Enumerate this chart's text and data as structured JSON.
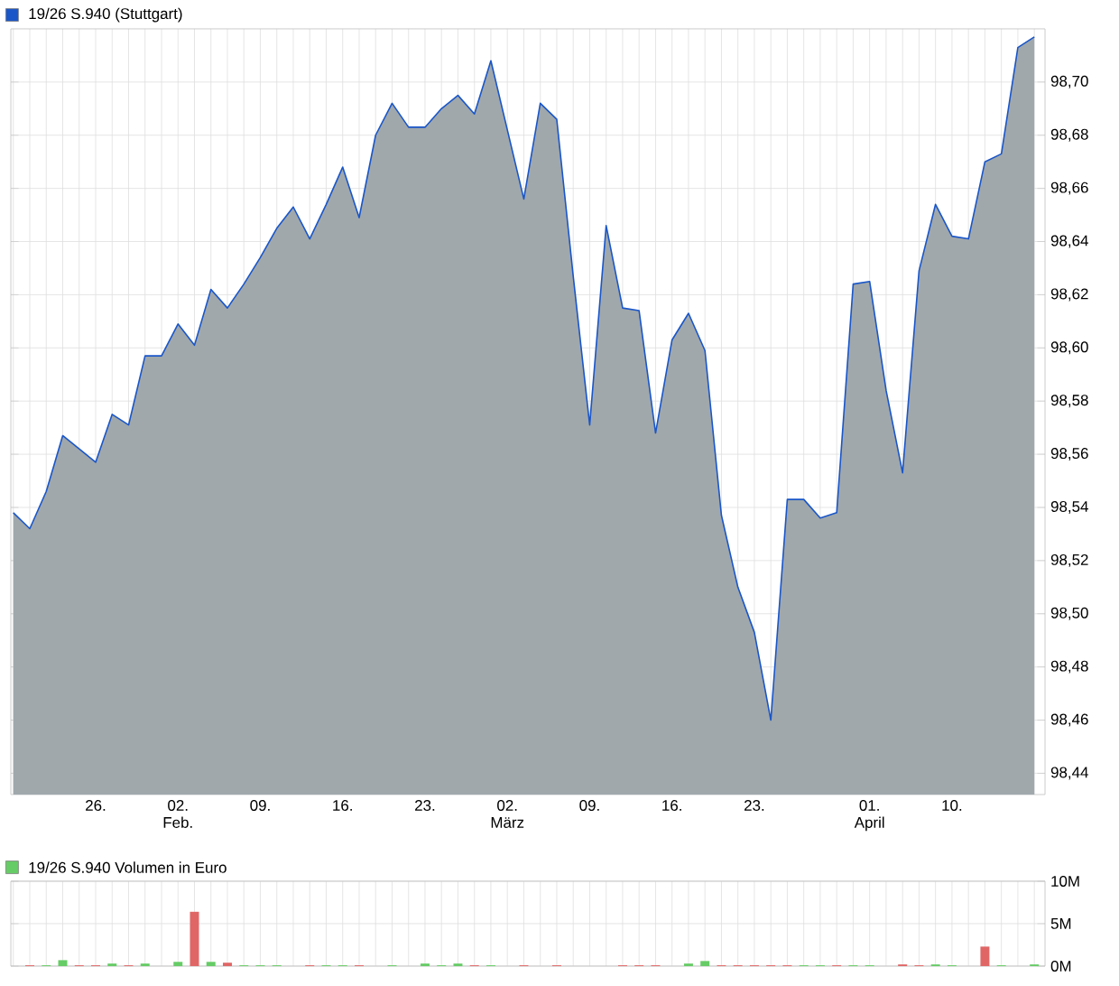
{
  "chart_data": [
    {
      "type": "area",
      "legend": "top left",
      "grid": true,
      "categories": [
        null,
        null,
        null,
        null,
        null,
        "26.",
        null,
        null,
        null,
        null,
        "02. Feb.",
        null,
        null,
        null,
        null,
        "09.",
        null,
        null,
        null,
        null,
        "16.",
        null,
        null,
        null,
        null,
        "23.",
        null,
        null,
        null,
        null,
        "02. März",
        null,
        null,
        null,
        null,
        "09.",
        null,
        null,
        null,
        null,
        "16.",
        null,
        null,
        null,
        null,
        "23.",
        null,
        null,
        null,
        null,
        null,
        null,
        "01. April",
        null,
        null,
        null,
        null,
        "10.",
        null,
        null,
        null,
        null,
        null
      ],
      "series": [
        {
          "name": "19/26 S.940 (Stuttgart)",
          "color": "#1a56c8",
          "values": [
            98.538,
            98.532,
            98.546,
            98.567,
            98.562,
            98.557,
            98.575,
            98.571,
            98.597,
            98.597,
            98.609,
            98.601,
            98.622,
            98.615,
            98.624,
            98.634,
            98.645,
            98.653,
            98.641,
            98.654,
            98.668,
            98.649,
            98.68,
            98.692,
            98.683,
            98.683,
            98.69,
            98.695,
            98.688,
            98.708,
            98.682,
            98.656,
            98.692,
            98.686,
            98.627,
            98.571,
            98.646,
            98.615,
            98.614,
            98.568,
            98.603,
            98.613,
            98.599,
            98.537,
            98.51,
            98.493,
            98.46,
            98.543,
            98.543,
            98.536,
            98.538,
            98.624,
            98.625,
            98.584,
            98.553,
            98.629,
            98.654,
            98.642,
            98.641,
            98.67,
            98.673,
            98.713,
            98.717
          ]
        }
      ],
      "ylim": [
        98.432,
        98.72
      ],
      "yticks": [
        {
          "value": 98.44,
          "label": "98,44"
        },
        {
          "value": 98.46,
          "label": "98,46"
        },
        {
          "value": 98.48,
          "label": "98,48"
        },
        {
          "value": 98.5,
          "label": "98,50"
        },
        {
          "value": 98.52,
          "label": "98,52"
        },
        {
          "value": 98.54,
          "label": "98,54"
        },
        {
          "value": 98.56,
          "label": "98,56"
        },
        {
          "value": 98.58,
          "label": "98,58"
        },
        {
          "value": 98.6,
          "label": "98,60"
        },
        {
          "value": 98.62,
          "label": "98,62"
        },
        {
          "value": 98.64,
          "label": "98,64"
        },
        {
          "value": 98.66,
          "label": "98,66"
        },
        {
          "value": 98.68,
          "label": "98,68"
        },
        {
          "value": 98.7,
          "label": "98,70"
        }
      ]
    },
    {
      "type": "bar",
      "legend": "top left",
      "grid": true,
      "tick_labels": "y",
      "categories": [
        null,
        null,
        null,
        null,
        null,
        null,
        null,
        null,
        null,
        null,
        null,
        null,
        null,
        null,
        null,
        null,
        null,
        null,
        null,
        null,
        null,
        null,
        null,
        null,
        null,
        null,
        null,
        null,
        null,
        null,
        null,
        null,
        null,
        null,
        null,
        null,
        null,
        null,
        null,
        null,
        null,
        null,
        null,
        null,
        null,
        null,
        null,
        null,
        null,
        null,
        null,
        null,
        null,
        null,
        null,
        null,
        null,
        null,
        null,
        null,
        null,
        null,
        null
      ],
      "series": [
        {
          "name": "19/26 S.940 Volumen in Euro",
          "color": "#66cc66",
          "values": [
            null,
            null,
            0.1,
            0.7,
            null,
            null,
            0.3,
            null,
            0.3,
            null,
            0.5,
            null,
            0.5,
            null,
            0.1,
            0.1,
            0.1,
            null,
            null,
            0.1,
            0.1,
            null,
            null,
            0.1,
            null,
            0.3,
            0.1,
            0.3,
            null,
            0.1,
            null,
            null,
            null,
            null,
            null,
            null,
            null,
            null,
            null,
            null,
            null,
            0.3,
            0.6,
            null,
            null,
            null,
            null,
            null,
            0.1,
            0.1,
            null,
            0.1,
            0.1,
            null,
            null,
            null,
            0.2,
            0.1,
            null,
            null,
            0.1,
            null,
            0.2
          ]
        },
        {
          "color": "#e06666",
          "values": [
            null,
            0.1,
            null,
            null,
            0.1,
            0.1,
            null,
            0.1,
            null,
            null,
            null,
            6.4,
            null,
            0.4,
            null,
            null,
            null,
            null,
            0.1,
            null,
            null,
            0.1,
            null,
            null,
            null,
            null,
            null,
            null,
            0.1,
            null,
            null,
            0.1,
            null,
            0.1,
            null,
            null,
            null,
            0.1,
            0.1,
            0.1,
            null,
            null,
            null,
            0.1,
            0.1,
            0.1,
            0.1,
            0.1,
            null,
            null,
            0.1,
            null,
            null,
            null,
            0.2,
            0.1,
            null,
            null,
            null,
            2.3,
            null,
            null,
            null
          ]
        }
      ],
      "ylim": [
        0,
        10
      ],
      "yticks": [
        {
          "value": 0,
          "label": "0M"
        },
        {
          "value": 5,
          "label": "5M"
        },
        {
          "value": 10,
          "label": "10M"
        }
      ]
    }
  ]
}
